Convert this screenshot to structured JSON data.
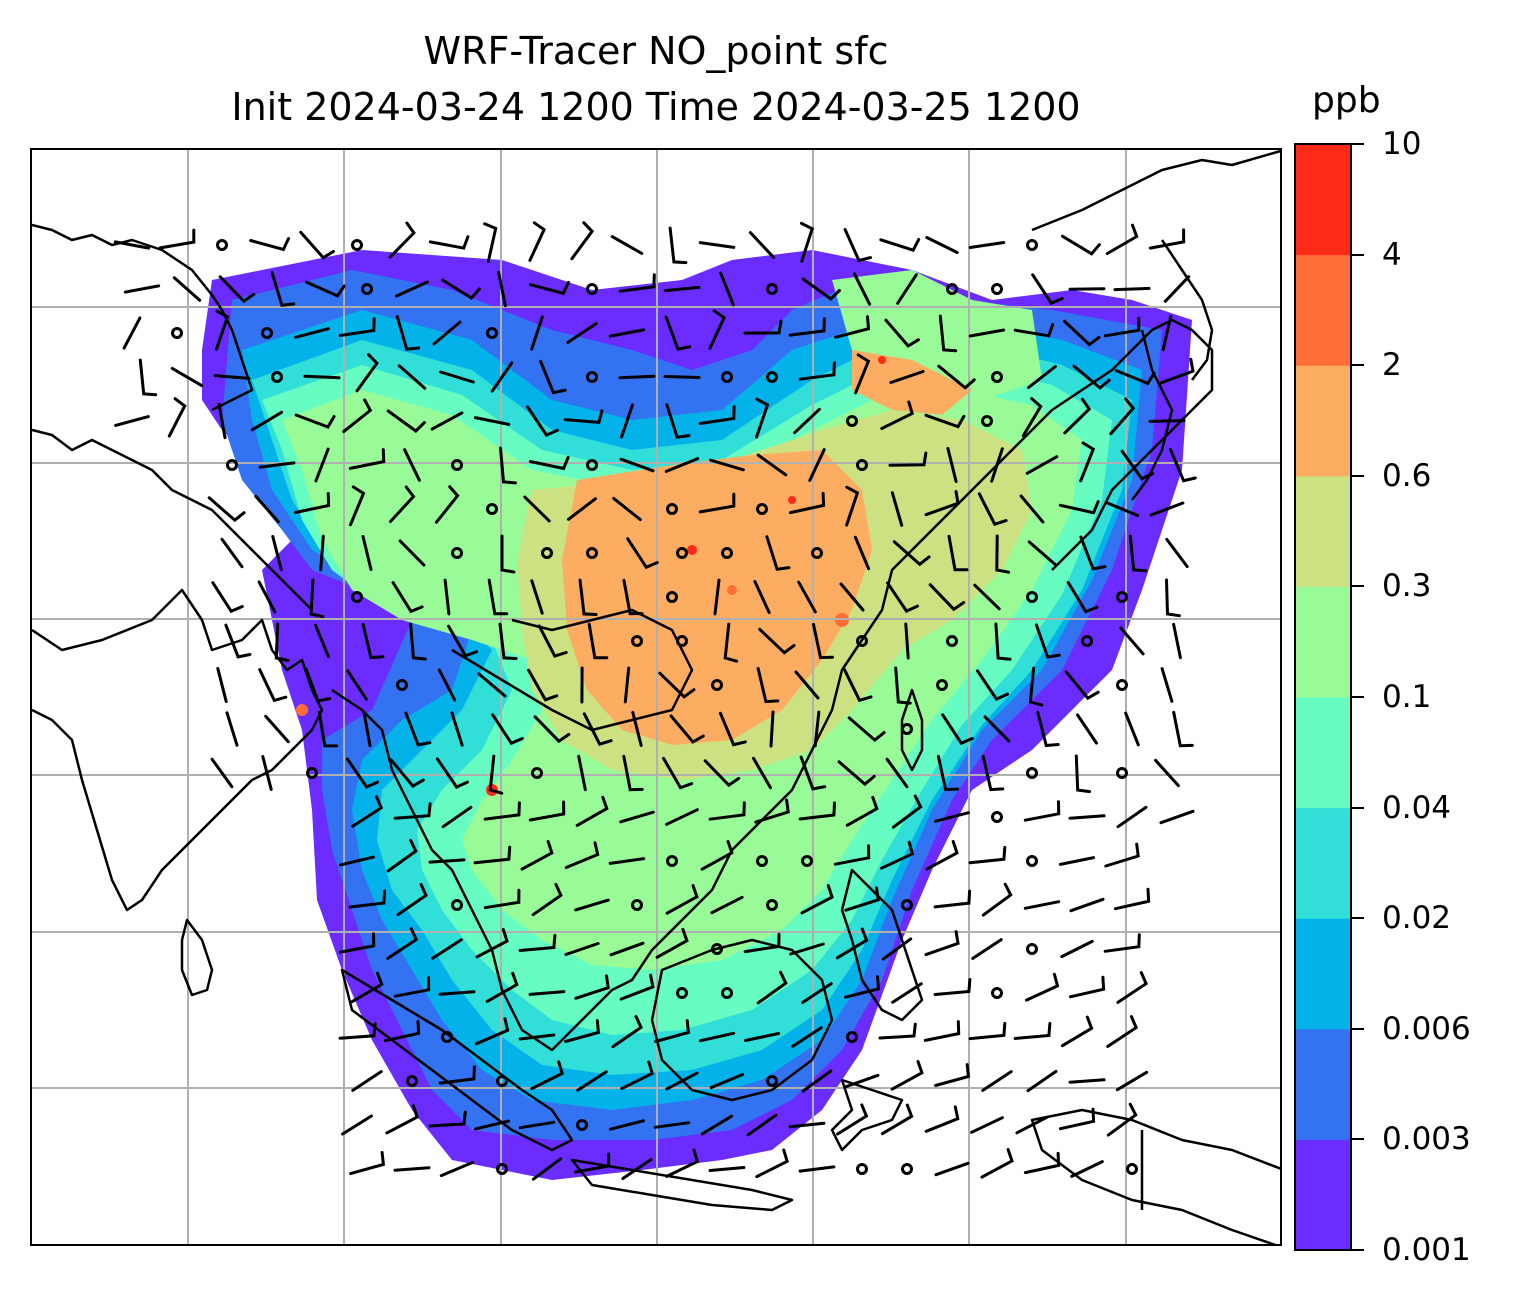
{
  "title": {
    "line1": "WRF-Tracer NO_point sfc",
    "line2": "Init 2024-03-24 1200 Time 2024-03-25 1200"
  },
  "colorbar": {
    "unit": "ppb",
    "levels": [
      "0.001",
      "0.003",
      "0.006",
      "0.02",
      "0.04",
      "0.1",
      "0.3",
      "0.6",
      "2",
      "4",
      "10"
    ],
    "colors": [
      "#6a2cff",
      "#3372f0",
      "#04b2ea",
      "#31dfd8",
      "#66fcc2",
      "#98fb98",
      "#cce282",
      "#fdad62",
      "#ff6e38",
      "#ff2a18"
    ]
  },
  "map": {
    "land_outline_color": "#000000",
    "gridline_color": "#b0b0b0"
  }
}
